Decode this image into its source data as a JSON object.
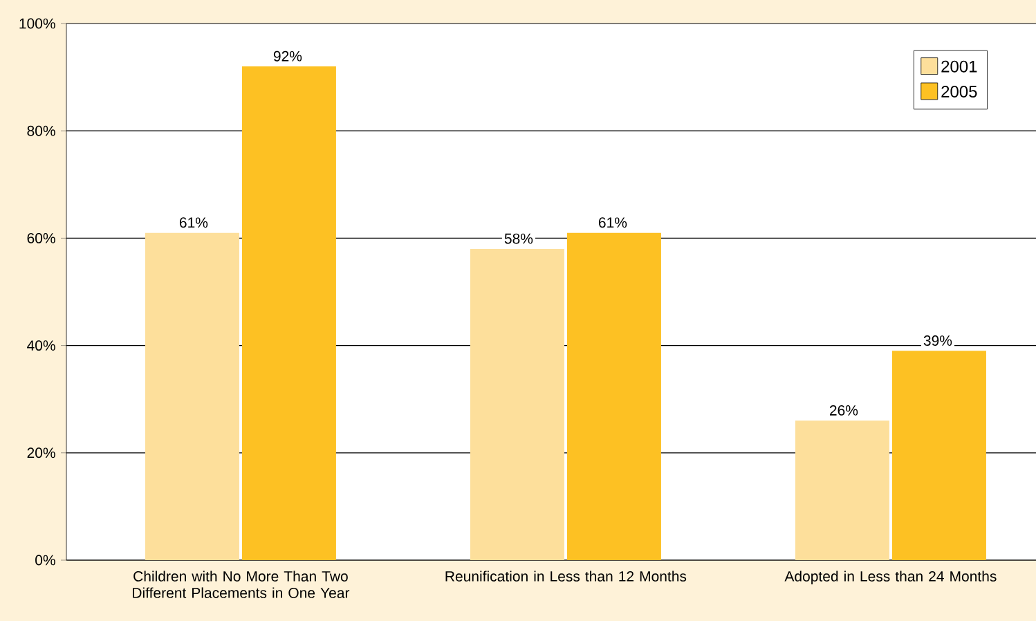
{
  "chart_data": {
    "type": "bar",
    "categories": [
      "Children with No More Than Two Different Placements in One Year",
      "Reunification in Less than 12 Months",
      "Adopted in Less than 24 Months"
    ],
    "series": [
      {
        "name": "2001",
        "color": "#fddf9b",
        "values": [
          61,
          58,
          26
        ],
        "value_labels": [
          "61%",
          "58%",
          "26%"
        ]
      },
      {
        "name": "2005",
        "color": "#fdc123",
        "values": [
          92,
          61,
          39
        ],
        "value_labels": [
          "92%",
          "61%",
          "39%"
        ]
      }
    ],
    "ylim": [
      0,
      100
    ],
    "yticks": [
      {
        "value": 0,
        "label": "0%"
      },
      {
        "value": 20,
        "label": "20%"
      },
      {
        "value": 40,
        "label": "40%"
      },
      {
        "value": 60,
        "label": "60%"
      },
      {
        "value": 80,
        "label": "80%"
      },
      {
        "value": 100,
        "label": "100%"
      }
    ],
    "grid": "y",
    "legend": "top right"
  }
}
